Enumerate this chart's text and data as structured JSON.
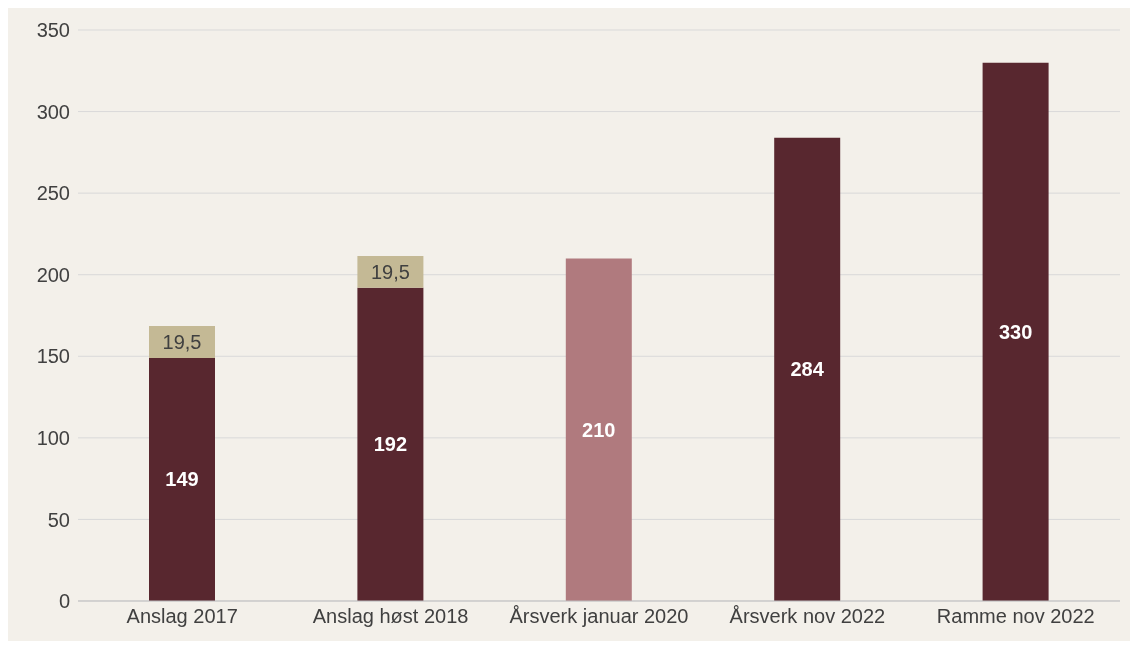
{
  "chart_data": {
    "type": "bar",
    "stacked": true,
    "categories": [
      "Anslag 2017",
      "Anslag høst 2018",
      "Årsverk januar 2020",
      "Årsverk nov 2022",
      "Ramme nov 2022"
    ],
    "series": [
      {
        "color": "#58272f",
        "colors": [
          "#58272f",
          "#58272f",
          "#b07a7e",
          "#58272f",
          "#58272f"
        ],
        "values": [
          149,
          192,
          210,
          284,
          330
        ],
        "value_labels": [
          "149",
          "192",
          "210",
          "284",
          "330"
        ]
      },
      {
        "color": "#c4b995",
        "values": [
          19.5,
          19.5,
          null,
          null,
          null
        ],
        "value_labels": [
          "19,5",
          "19,5",
          null,
          null,
          null
        ]
      }
    ],
    "ylim": [
      0,
      350
    ],
    "yticks": [
      0,
      50,
      100,
      150,
      200,
      250,
      300,
      350
    ],
    "grid": "y",
    "legend": false
  }
}
